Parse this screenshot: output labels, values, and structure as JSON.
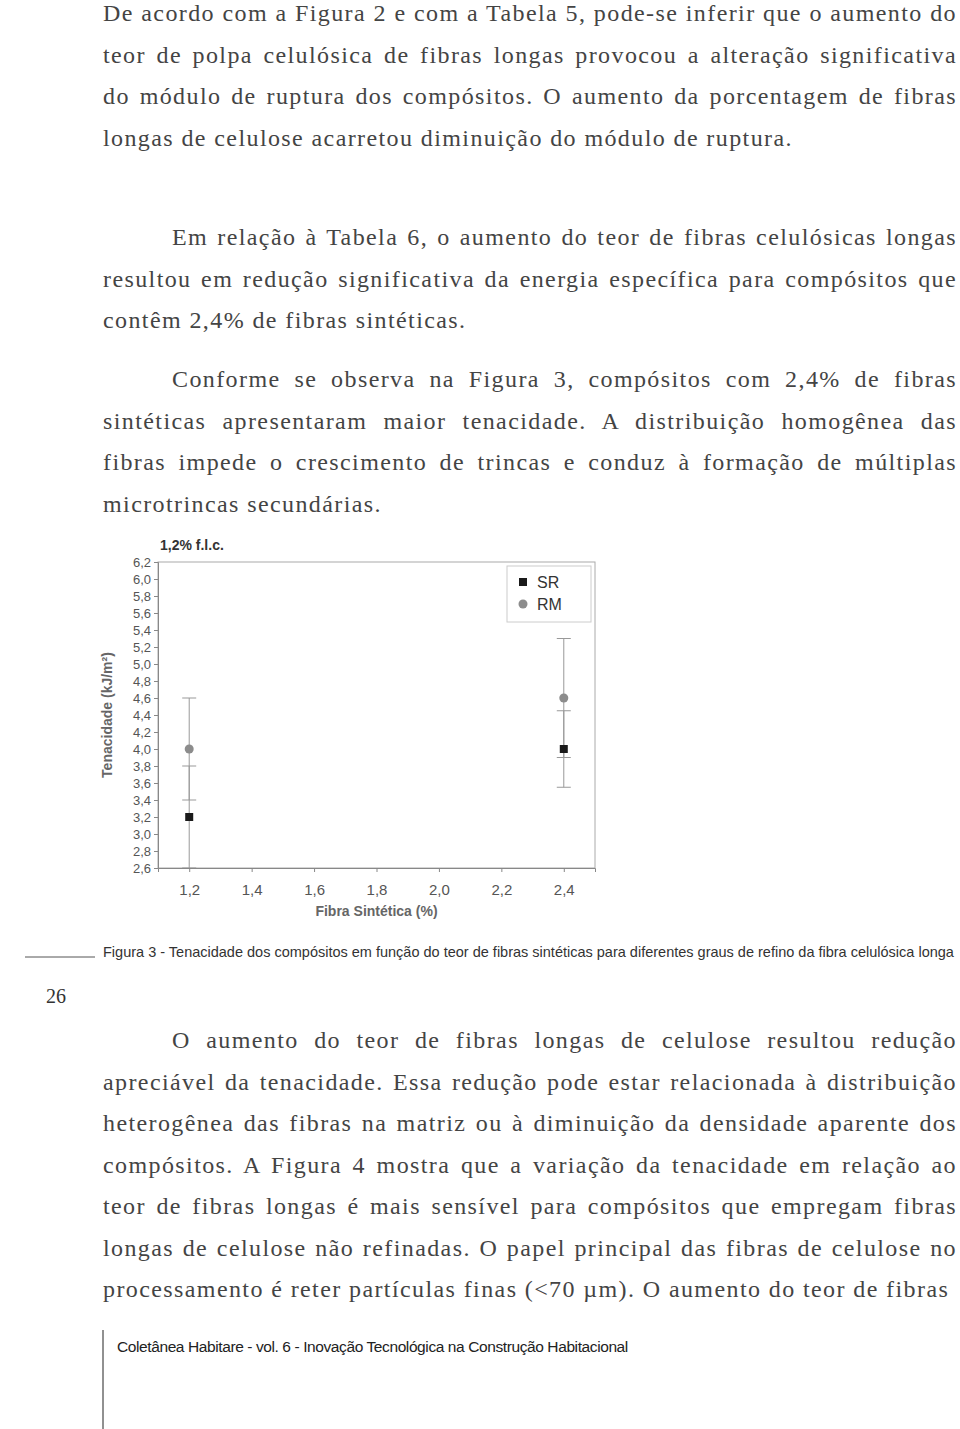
{
  "paragraphs_before": [
    "De acordo com a Figura 2 e com a Tabela 5, pode-se inferir que o aumento do teor de polpa celulósica de fibras longas provocou a alteração significativa do módulo de ruptura dos compósitos. O aumento da porcentagem de fibras longas de celulose acarretou diminuição do módulo de ruptura.",
    "Em relação à Tabela 6, o aumento do teor de fibras celulósicas longas resultou em redução significativa da energia específica para compósitos que contêm 2,4% de fibras sintéticas.",
    "Conforme se observa na Figura 3, compósitos com 2,4% de fibras sintéticas apresentaram maior tenacidade. A distribuição homogênea das fibras impede o crescimento de trincas e conduz à formação de múltiplas microtrincas secundárias."
  ],
  "chart_data": {
    "type": "scatter",
    "title": "1,2% f.l.c.",
    "x_label": "Fibra Sintética (%)",
    "y_label": "Tenacidade (kJ/m²)",
    "x": [
      1.2,
      2.4
    ],
    "series": [
      {
        "name": "SR",
        "color": "#1a1a1a",
        "marker": "square",
        "values": [
          3.2,
          4.0
        ],
        "errors": [
          0.6,
          0.45
        ]
      },
      {
        "name": "RM",
        "color": "#8c8c8c",
        "marker": "circle",
        "values": [
          4.0,
          4.6
        ],
        "errors": [
          0.6,
          0.7
        ]
      }
    ],
    "xlim": [
      1.1,
      2.5
    ],
    "xticks": [
      {
        "value": 1.2,
        "label": "1,2"
      },
      {
        "value": 1.4,
        "label": "1,4"
      },
      {
        "value": 1.6,
        "label": "1,6"
      },
      {
        "value": 1.8,
        "label": "1,8"
      },
      {
        "value": 2.0,
        "label": "2,0"
      },
      {
        "value": 2.2,
        "label": "2,2"
      },
      {
        "value": 2.4,
        "label": "2,4"
      }
    ],
    "ylim": [
      2.6,
      6.2
    ],
    "yticks": [
      {
        "value": 2.6,
        "label": "2,6"
      },
      {
        "value": 2.8,
        "label": "2,8"
      },
      {
        "value": 3.0,
        "label": "3,0"
      },
      {
        "value": 3.2,
        "label": "3,2"
      },
      {
        "value": 3.4,
        "label": "3,4"
      },
      {
        "value": 3.6,
        "label": "3,6"
      },
      {
        "value": 3.8,
        "label": "3,8"
      },
      {
        "value": 4.0,
        "label": "4,0"
      },
      {
        "value": 4.2,
        "label": "4,2"
      },
      {
        "value": 4.4,
        "label": "4,4"
      },
      {
        "value": 4.6,
        "label": "4,6"
      },
      {
        "value": 4.8,
        "label": "4,8"
      },
      {
        "value": 5.0,
        "label": "5,0"
      },
      {
        "value": 5.2,
        "label": "5,2"
      },
      {
        "value": 5.4,
        "label": "5,4"
      },
      {
        "value": 5.6,
        "label": "5,6"
      },
      {
        "value": 5.8,
        "label": "5,8"
      },
      {
        "value": 6.0,
        "label": "6,0"
      },
      {
        "value": 6.2,
        "label": "6,2"
      }
    ],
    "grid": false,
    "legend": "upper right"
  },
  "caption": "Figura 3 - Tenacidade dos compósitos em função do teor de fibras sintéticas para diferentes graus de refino da fibra celulósica longa",
  "paragraphs_after": [
    "O aumento do teor de fibras longas de celulose resultou redução apreciável da tenacidade. Essa redução pode estar relacionada à distribuição heterogênea das fibras na matriz ou à diminuição da densidade aparente dos compósitos. A Figura 4 mostra que a variação da tenacidade em relação ao teor de fibras longas é mais sensível para compósitos que empregam fibras longas de celulose não refinadas. O papel principal das fibras de celulose no processamento é reter partículas finas (<70 µm). O aumento do teor de fibras"
  ],
  "page_number": "26",
  "footer": "Coletânea Habitare - vol. 6 - Inovação Tecnológica na Construção Habitacional"
}
